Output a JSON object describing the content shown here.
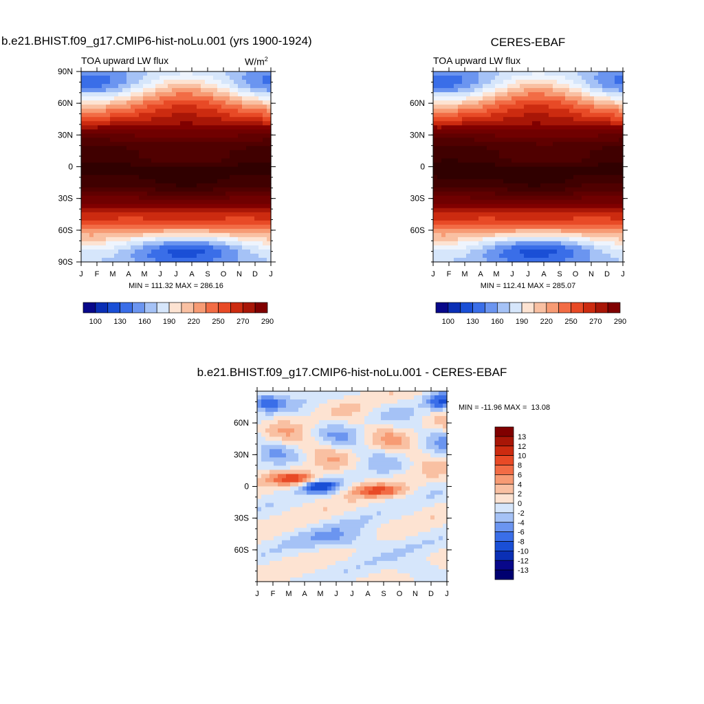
{
  "chart_data": [
    {
      "type": "heatmap",
      "title": "b.e21.BHIST.f09_g17.CMIP6-hist-noLu.001 (yrs 1900-1924)",
      "subtitle_left": "TOA upward LW flux",
      "units_base": "W/m",
      "units_exp": "2",
      "x_ticks": [
        "J",
        "F",
        "M",
        "A",
        "M",
        "J",
        "J",
        "A",
        "S",
        "O",
        "N",
        "D",
        "J"
      ],
      "y_ticks": [
        "90N",
        "60N",
        "30N",
        "0",
        "30S",
        "60S",
        "90S"
      ],
      "y_tick_lats": [
        90,
        60,
        30,
        0,
        -30,
        -60,
        -90
      ],
      "ylim": [
        -90,
        90
      ],
      "stats": "MIN = 111.32 MAX = 286.16",
      "levels": [
        "100",
        "130",
        "160",
        "190",
        "220",
        "250",
        "270",
        "290"
      ],
      "colorbar_colors": [
        "#08088a",
        "#0a2fb5",
        "#1a4fd6",
        "#3a6ee8",
        "#6b95f0",
        "#a5c2f6",
        "#d6e6fb",
        "#fde3d2",
        "#f9c0a2",
        "#f79b74",
        "#f26c45",
        "#e84a26",
        "#cc2b10",
        "#a81607",
        "#800000"
      ],
      "contour_levels": [
        100,
        110,
        120,
        130,
        140,
        150,
        160,
        170,
        180,
        190,
        200,
        210,
        220,
        230,
        240,
        250,
        260,
        270,
        280,
        290
      ],
      "model_variant": "model"
    },
    {
      "type": "heatmap",
      "title": "CERES-EBAF",
      "subtitle_left": "TOA upward LW flux",
      "x_ticks": [
        "J",
        "F",
        "M",
        "A",
        "M",
        "J",
        "J",
        "A",
        "S",
        "O",
        "N",
        "D",
        "J"
      ],
      "y_ticks": [
        "60N",
        "30N",
        "0",
        "30S",
        "60S"
      ],
      "y_tick_lats": [
        60,
        30,
        0,
        -30,
        -60
      ],
      "ylim": [
        -90,
        90
      ],
      "stats": "MIN = 112.41 MAX = 285.07",
      "levels": [
        "100",
        "130",
        "160",
        "190",
        "220",
        "250",
        "270",
        "290"
      ],
      "colorbar_colors": [
        "#08088a",
        "#0a2fb5",
        "#1a4fd6",
        "#3a6ee8",
        "#6b95f0",
        "#a5c2f6",
        "#d6e6fb",
        "#fde3d2",
        "#f9c0a2",
        "#f79b74",
        "#f26c45",
        "#e84a26",
        "#cc2b10",
        "#a81607",
        "#800000"
      ],
      "contour_levels": [
        100,
        110,
        120,
        130,
        140,
        150,
        160,
        170,
        180,
        190,
        200,
        210,
        220,
        230,
        240,
        250,
        260,
        270,
        280,
        290
      ],
      "model_variant": "obs"
    },
    {
      "type": "heatmap",
      "title": "b.e21.BHIST.f09_g17.CMIP6-hist-noLu.001 - CERES-EBAF",
      "x_ticks": [
        "J",
        "F",
        "M",
        "A",
        "M",
        "J",
        "J",
        "A",
        "S",
        "O",
        "N",
        "D",
        "J"
      ],
      "y_ticks": [
        "60N",
        "30N",
        "0",
        "30S",
        "60S"
      ],
      "y_tick_lats": [
        60,
        30,
        0,
        -30,
        -60
      ],
      "ylim": [
        -90,
        90
      ],
      "stats": "MIN = -11.96 MAX =  13.08",
      "levels": [
        "13",
        "12",
        "10",
        "8",
        "6",
        "4",
        "2",
        "0",
        "-2",
        "-4",
        "-6",
        "-8",
        "-10",
        "-12",
        "-13"
      ],
      "colorbar_colors": [
        "#800000",
        "#a81607",
        "#cc2b10",
        "#e84a26",
        "#f26c45",
        "#f79b74",
        "#f9c0a2",
        "#fde3d2",
        "#d6e6fb",
        "#a5c2f6",
        "#6b95f0",
        "#3a6ee8",
        "#1a4fd6",
        "#0a2fb5",
        "#08088a",
        "#000070"
      ],
      "contour_levels": [
        -13,
        -12,
        -10,
        -8,
        -6,
        -4,
        -2,
        0,
        2,
        4,
        6,
        8,
        10,
        12,
        13
      ],
      "model_variant": "diff"
    }
  ]
}
